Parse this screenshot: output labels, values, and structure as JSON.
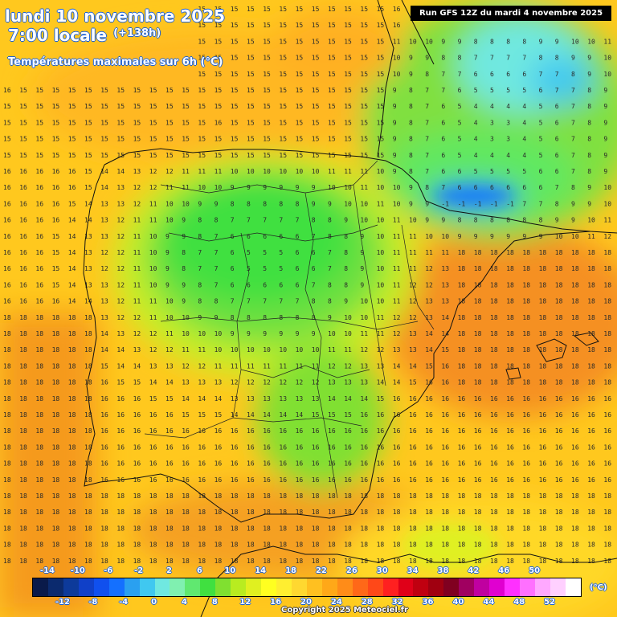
{
  "header": {
    "date_line": "lundi 10 novembre 2025",
    "time_line": "7:00 locale",
    "lead_time": "(+138h)",
    "variable": "Températures maximales sur 6h (°C)",
    "run_info": "Run GFS 12Z du mardi 4 novembre 2025",
    "unit": "(°C)",
    "copyright": "Copyright 2025 Meteociel.fr"
  },
  "legend": {
    "top_labels": [
      "-14",
      "-10",
      "-6",
      "-2",
      "2",
      "6",
      "10",
      "14",
      "18",
      "22",
      "26",
      "30",
      "34",
      "38",
      "42",
      "46",
      "50"
    ],
    "bottom_labels": [
      "-12",
      "-8",
      "-4",
      "0",
      "4",
      "8",
      "12",
      "16",
      "20",
      "24",
      "28",
      "32",
      "36",
      "40",
      "44",
      "48",
      "52"
    ],
    "colors": [
      "#0a1a4a",
      "#0b2a6e",
      "#0d3a9a",
      "#1040c8",
      "#1050ee",
      "#1470ff",
      "#2aa0f0",
      "#40c8f0",
      "#70e8e0",
      "#80f0b0",
      "#60e870",
      "#40e040",
      "#80e030",
      "#b8ec20",
      "#e0f020",
      "#ffff20",
      "#ffee30",
      "#ffd830",
      "#ffc020",
      "#ffa818",
      "#ff8c18",
      "#ff6818",
      "#ff4818",
      "#ff2020",
      "#e00018",
      "#c00010",
      "#a00010",
      "#800020",
      "#a00060",
      "#c000a0",
      "#e000d0",
      "#ff30ff",
      "#ff70ff",
      "#ffa8ff",
      "#ffd0ff",
      "#ffffff"
    ]
  },
  "map": {
    "region": "Péninsule ibérique",
    "legend_color_steps": 36
  }
}
